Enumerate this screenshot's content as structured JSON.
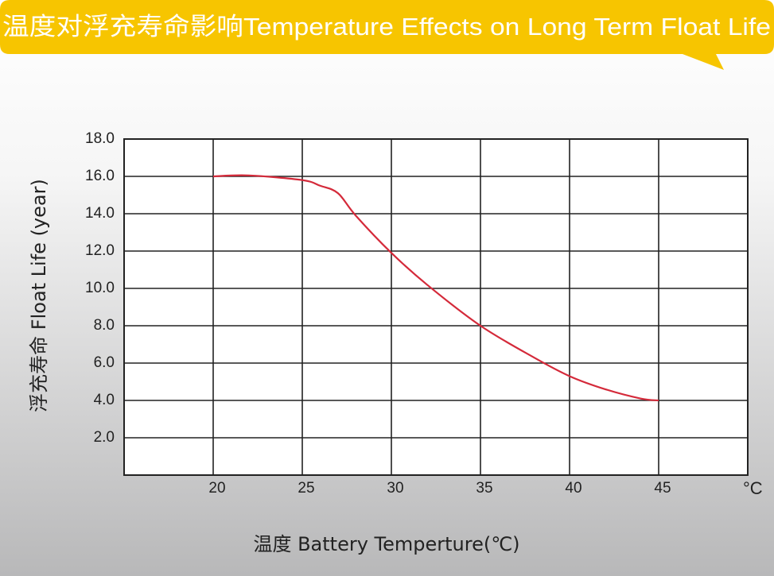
{
  "chart_data": {
    "type": "line",
    "title": "温度对浮充寿命影响Temperature Effects on Long Term Float Life",
    "x_label": "温度  Battery  Temperture(℃)",
    "y_label": "浮充寿命  Float Life (year)",
    "x_unit": "°C",
    "x": [
      20,
      22,
      25,
      26,
      27,
      28,
      30,
      32,
      35,
      38,
      40,
      42,
      44,
      45
    ],
    "series": [
      {
        "name": "Float Life",
        "color": "#d42a3a",
        "values": [
          16.0,
          16.05,
          15.8,
          15.5,
          15.1,
          13.9,
          11.9,
          10.2,
          8.0,
          6.3,
          5.3,
          4.6,
          4.1,
          4.0
        ]
      }
    ],
    "xlim": [
      15,
      50
    ],
    "xticks": [
      20,
      25,
      30,
      35,
      40,
      45
    ],
    "ylim": [
      0,
      18
    ],
    "yticks": [
      {
        "value": 2,
        "label": "2.0"
      },
      {
        "value": 4,
        "label": "4.0"
      },
      {
        "value": 6,
        "label": "6.0"
      },
      {
        "value": 8,
        "label": "8.0"
      },
      {
        "value": 10,
        "label": "10.0"
      },
      {
        "value": 12,
        "label": "12.0"
      },
      {
        "value": 14,
        "label": "14.0"
      },
      {
        "value": 16,
        "label": "16.0"
      },
      {
        "value": 18,
        "label": "18.0"
      }
    ],
    "grid": true
  }
}
